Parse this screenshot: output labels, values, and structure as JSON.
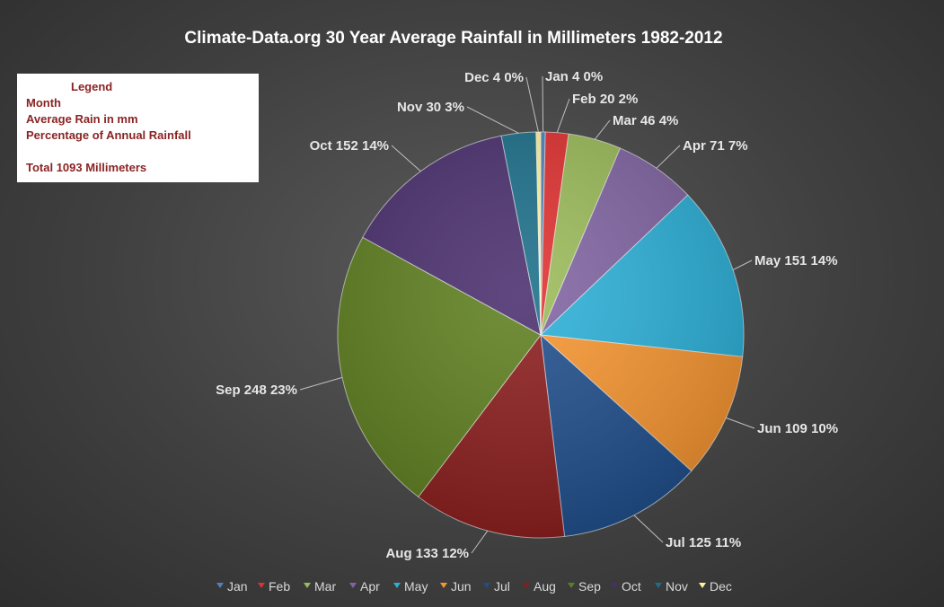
{
  "chart_data": {
    "type": "pie",
    "title": "Climate-Data.org  30 Year Average Rainfall in Millimeters 1982-2012",
    "categories": [
      "Jan",
      "Feb",
      "Mar",
      "Apr",
      "May",
      "Jun",
      "Jul",
      "Aug",
      "Sep",
      "Oct",
      "Nov",
      "Dec"
    ],
    "values": [
      4,
      20,
      46,
      71,
      151,
      109,
      125,
      133,
      248,
      152,
      30,
      4
    ],
    "percentages": [
      "0%",
      "2%",
      "4%",
      "7%",
      "14%",
      "10%",
      "11%",
      "12%",
      "23%",
      "14%",
      "3%",
      "0%"
    ],
    "data_labels": [
      "Jan 4 0%",
      "Feb 20 2%",
      "Mar 46 4%",
      "Apr 71 7%",
      "May 151 14%",
      "Jun 109 10%",
      "Jul 125 11%",
      "Aug 133 12%",
      "Sep 248 23%",
      "Oct 152 14%",
      "Nov 30 3%",
      "Dec 4 0%"
    ],
    "colors": [
      "#4f81bd",
      "#e0302f",
      "#9bbb59",
      "#8064a2",
      "#2bb0d8",
      "#f79530",
      "#1f4e8c",
      "#8b1c1c",
      "#5e7f1f",
      "#4a2f6e",
      "#1b6f8a",
      "#fff49a"
    ],
    "legend_position": "bottom"
  },
  "legend_box": {
    "heading": "Legend",
    "line1": "Month",
    "line2": "Average Rain in mm",
    "line3": "Percentage of Annual Rainfall",
    "total": "Total  1093 Millimeters"
  }
}
